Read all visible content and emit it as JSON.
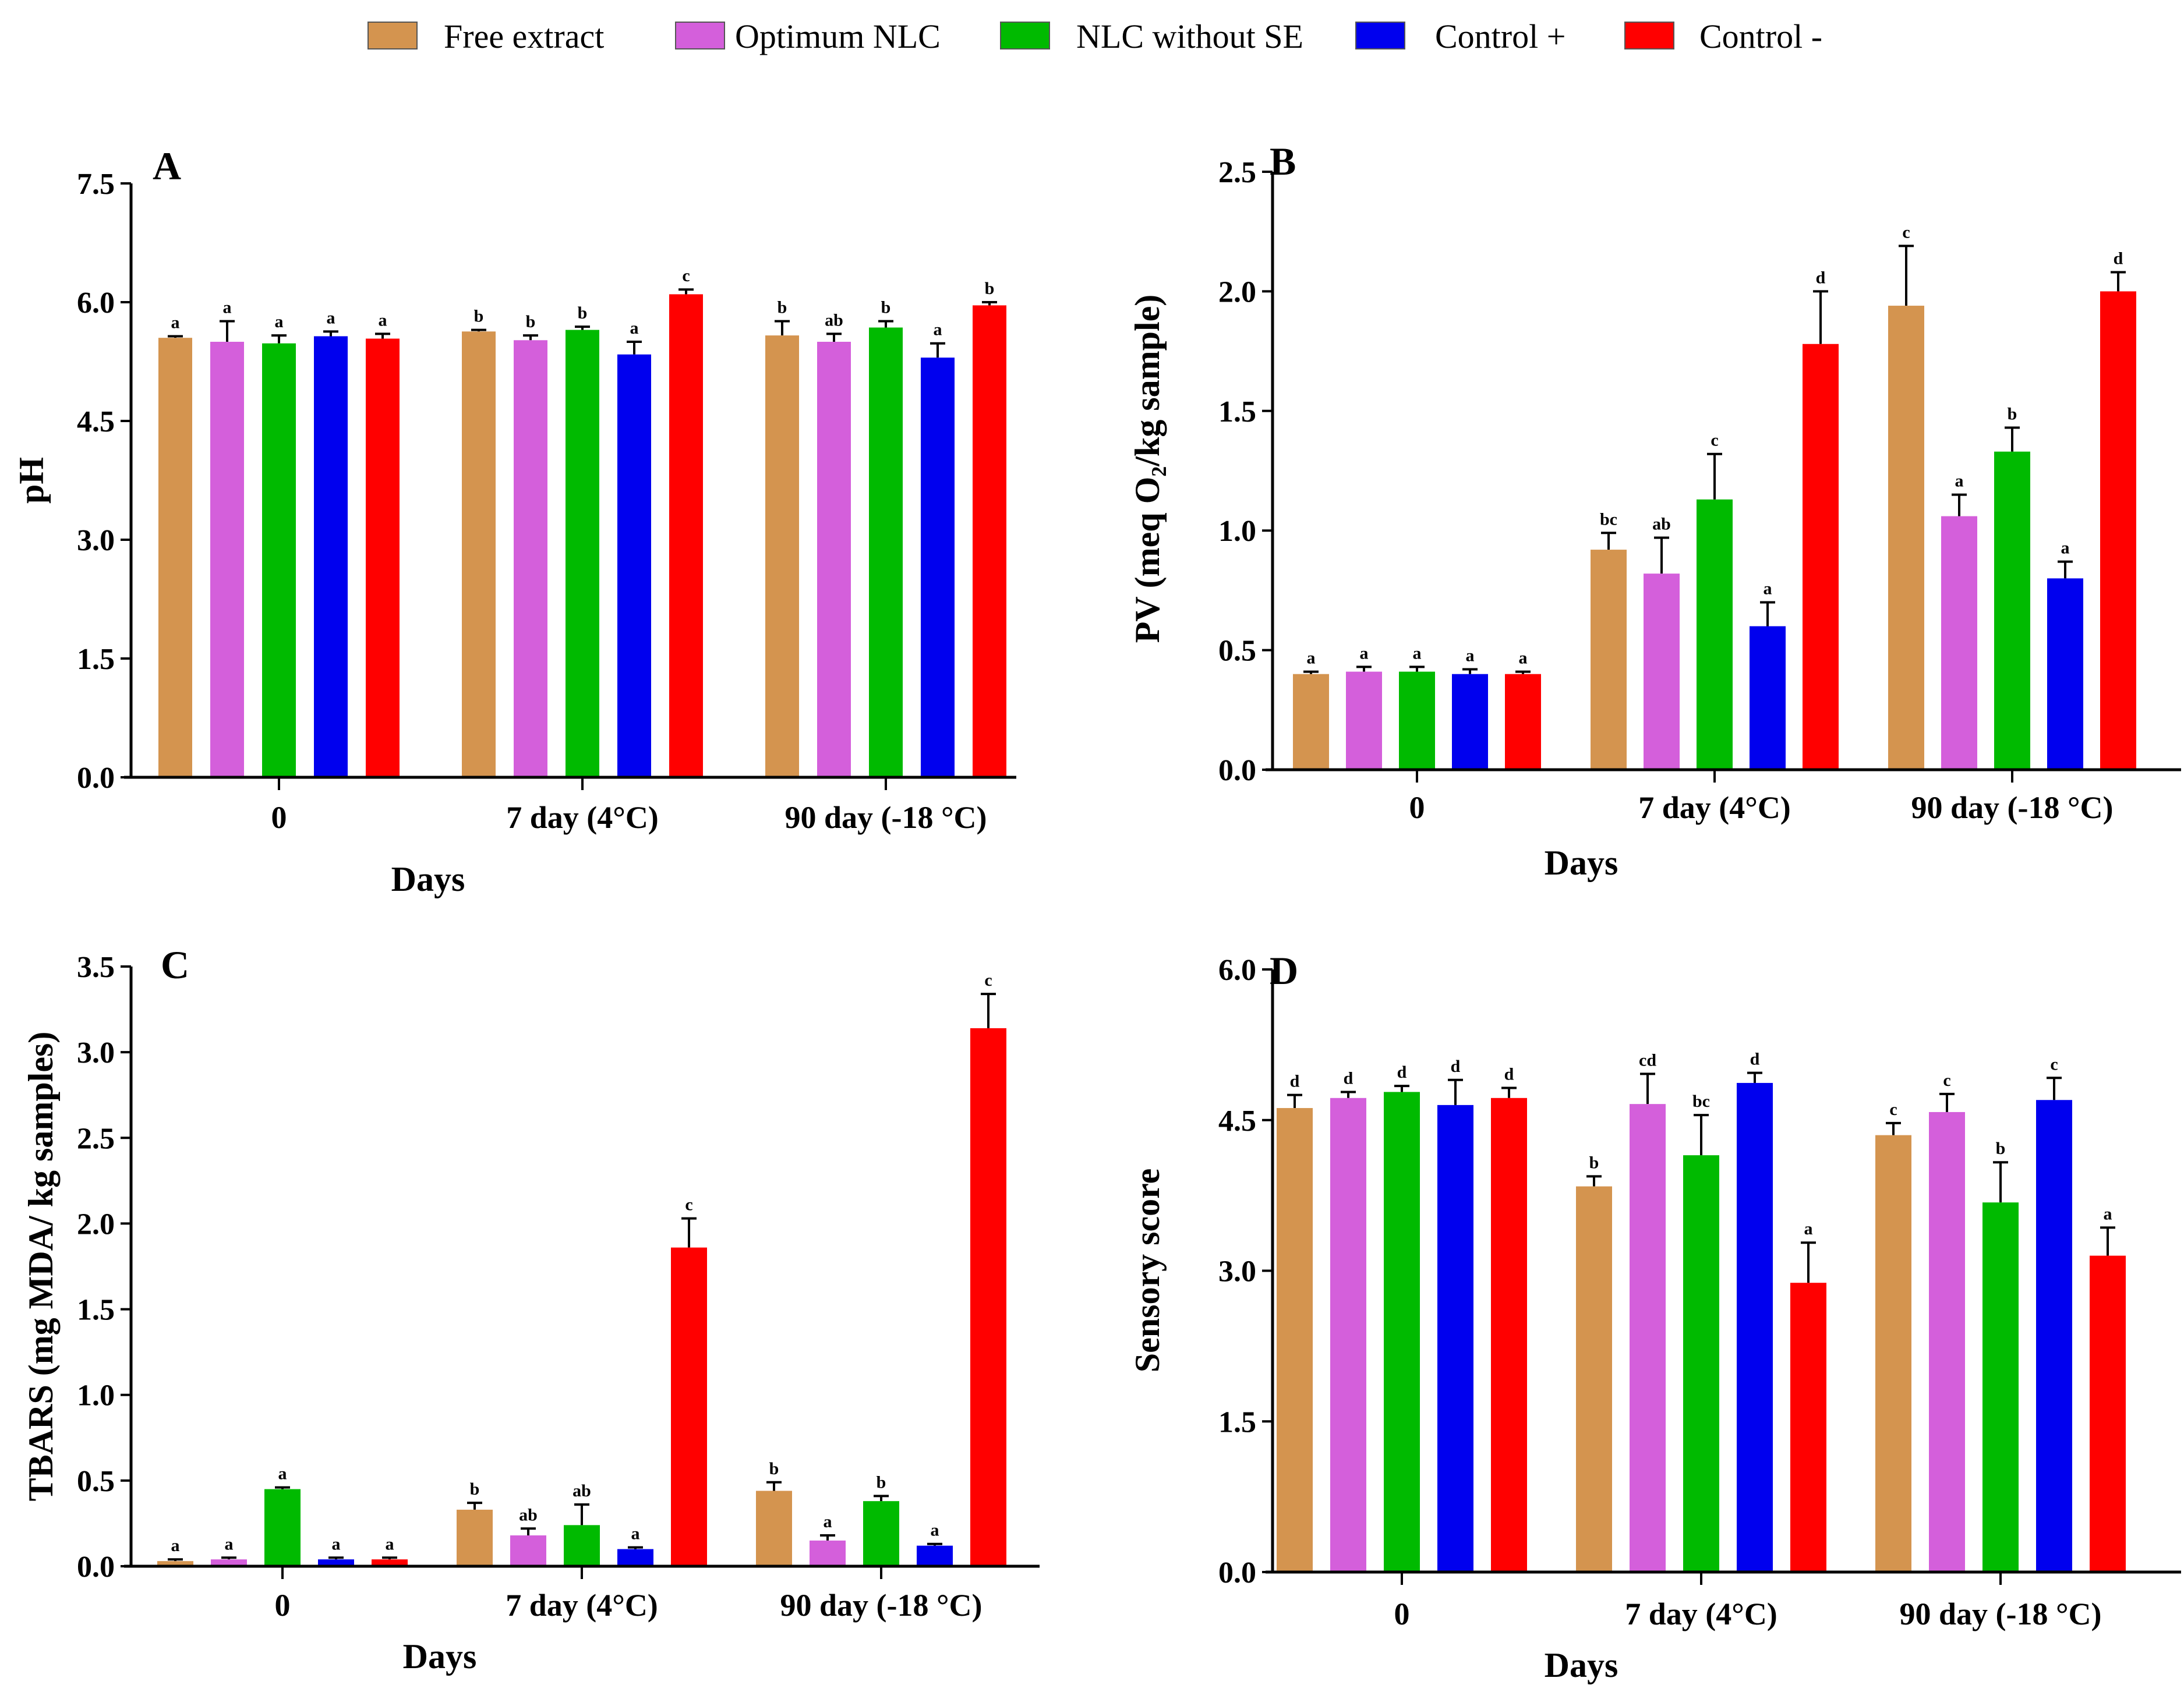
{
  "legend": [
    {
      "label": "Free extract",
      "color": "#D4944F"
    },
    {
      "label": "Optimum NLC",
      "color": "#D45FDB"
    },
    {
      "label": "NLC without SE",
      "color": "#00BA00"
    },
    {
      "label": "Control +",
      "color": "#0000EE"
    },
    {
      "label": "Control -",
      "color": "#FF0000"
    }
  ],
  "chart_data": [
    {
      "panel": "A",
      "type": "bar",
      "ylabel": "pH",
      "xlabel": "Days",
      "categories": [
        "0",
        "7 day (4°C)",
        "90 day (-18 °C)"
      ],
      "ylim": [
        0,
        7.5
      ],
      "yticks": [
        "0.0",
        "1.5",
        "3.0",
        "4.5",
        "6.0",
        "7.5"
      ],
      "series": [
        {
          "name": "Free extract",
          "values": [
            5.55,
            5.63,
            5.58
          ],
          "errors": [
            0.02,
            0.02,
            0.18
          ],
          "letters": [
            "a",
            "b",
            "b"
          ]
        },
        {
          "name": "Optimum NLC",
          "values": [
            5.5,
            5.52,
            5.5
          ],
          "errors": [
            0.26,
            0.06,
            0.1
          ],
          "letters": [
            "a",
            "b",
            "ab"
          ]
        },
        {
          "name": "NLC without SE",
          "values": [
            5.48,
            5.65,
            5.68
          ],
          "errors": [
            0.1,
            0.04,
            0.08
          ],
          "letters": [
            "a",
            "b",
            "b"
          ]
        },
        {
          "name": "Control +",
          "values": [
            5.57,
            5.34,
            5.3
          ],
          "errors": [
            0.06,
            0.16,
            0.18
          ],
          "letters": [
            "a",
            "a",
            "a"
          ]
        },
        {
          "name": "Control -",
          "values": [
            5.54,
            6.1,
            5.96
          ],
          "errors": [
            0.06,
            0.06,
            0.04
          ],
          "letters": [
            "a",
            "c",
            "b"
          ]
        }
      ]
    },
    {
      "panel": "B",
      "type": "bar",
      "ylabel": "PV (meq O₂/kg sample)",
      "xlabel": "Days",
      "categories": [
        "0",
        "7 day (4°C)",
        "90 day (-18 °C)"
      ],
      "ylim": [
        0,
        2.5
      ],
      "yticks": [
        "0.0",
        "0.5",
        "1.0",
        "1.5",
        "2.0",
        "2.5"
      ],
      "series": [
        {
          "name": "Free extract",
          "values": [
            0.4,
            0.92,
            1.94
          ],
          "errors": [
            0.01,
            0.07,
            0.25
          ],
          "letters": [
            "a",
            "bc",
            "c"
          ]
        },
        {
          "name": "Optimum NLC",
          "values": [
            0.41,
            0.82,
            1.06
          ],
          "errors": [
            0.02,
            0.15,
            0.09
          ],
          "letters": [
            "a",
            "ab",
            "a"
          ]
        },
        {
          "name": "NLC without SE",
          "values": [
            0.41,
            1.13,
            1.33
          ],
          "errors": [
            0.02,
            0.19,
            0.1
          ],
          "letters": [
            "a",
            "c",
            "b"
          ]
        },
        {
          "name": "Control +",
          "values": [
            0.4,
            0.6,
            0.8
          ],
          "errors": [
            0.02,
            0.1,
            0.07
          ],
          "letters": [
            "a",
            "a",
            "a"
          ]
        },
        {
          "name": "Control -",
          "values": [
            0.4,
            1.78,
            2.0
          ],
          "errors": [
            0.01,
            0.22,
            0.08
          ],
          "letters": [
            "a",
            "d",
            "d"
          ]
        }
      ]
    },
    {
      "panel": "C",
      "type": "bar",
      "ylabel": "TBARS (mg MDA/ kg samples)",
      "xlabel": "Days",
      "categories": [
        "0",
        "7 day (4°C)",
        "90 day (-18 °C)"
      ],
      "ylim": [
        0,
        3.5
      ],
      "yticks": [
        "0.0",
        "0.5",
        "1.0",
        "1.5",
        "2.0",
        "2.5",
        "3.0",
        "3.5"
      ],
      "series": [
        {
          "name": "Free extract",
          "values": [
            0.03,
            0.33,
            0.44
          ],
          "errors": [
            0.01,
            0.04,
            0.05
          ],
          "letters": [
            "a",
            "b",
            "b"
          ]
        },
        {
          "name": "Optimum NLC",
          "values": [
            0.04,
            0.18,
            0.15
          ],
          "errors": [
            0.01,
            0.04,
            0.03
          ],
          "letters": [
            "a",
            "ab",
            "a"
          ]
        },
        {
          "name": "NLC without SE",
          "values": [
            0.45,
            0.24,
            0.38
          ],
          "errors": [
            0.01,
            0.12,
            0.03
          ],
          "letters": [
            "a",
            "ab",
            "b"
          ]
        },
        {
          "name": "Control +",
          "values": [
            0.04,
            0.1,
            0.12
          ],
          "errors": [
            0.01,
            0.01,
            0.01
          ],
          "letters": [
            "a",
            "a",
            "a"
          ]
        },
        {
          "name": "Control -",
          "values": [
            0.04,
            1.86,
            3.14
          ],
          "errors": [
            0.01,
            0.17,
            0.2
          ],
          "letters": [
            "a",
            "c",
            "c"
          ]
        }
      ]
    },
    {
      "panel": "D",
      "type": "bar",
      "ylabel": "Sensory score",
      "xlabel": "Days",
      "categories": [
        "0",
        "7 day (4°C)",
        "90 day (-18 °C)"
      ],
      "ylim": [
        0,
        6
      ],
      "yticks": [
        "0.0",
        "1.5",
        "3.0",
        "4.5",
        "6.0"
      ],
      "series": [
        {
          "name": "Free extract",
          "values": [
            4.62,
            3.84,
            4.35
          ],
          "errors": [
            0.13,
            0.1,
            0.12
          ],
          "letters": [
            "d",
            "b",
            "c"
          ]
        },
        {
          "name": "Optimum NLC",
          "values": [
            4.72,
            4.66,
            4.58
          ],
          "errors": [
            0.06,
            0.3,
            0.18
          ],
          "letters": [
            "d",
            "cd",
            "c"
          ]
        },
        {
          "name": "NLC without SE",
          "values": [
            4.78,
            4.15,
            3.68
          ],
          "errors": [
            0.06,
            0.4,
            0.4
          ],
          "letters": [
            "d",
            "bc",
            "b"
          ]
        },
        {
          "name": "Control +",
          "values": [
            4.65,
            4.87,
            4.7
          ],
          "errors": [
            0.25,
            0.1,
            0.22
          ],
          "letters": [
            "d",
            "d",
            "c"
          ]
        },
        {
          "name": "Control -",
          "values": [
            4.72,
            2.88,
            3.15
          ],
          "errors": [
            0.1,
            0.4,
            0.28
          ],
          "letters": [
            "d",
            "a",
            "a"
          ]
        }
      ]
    }
  ]
}
